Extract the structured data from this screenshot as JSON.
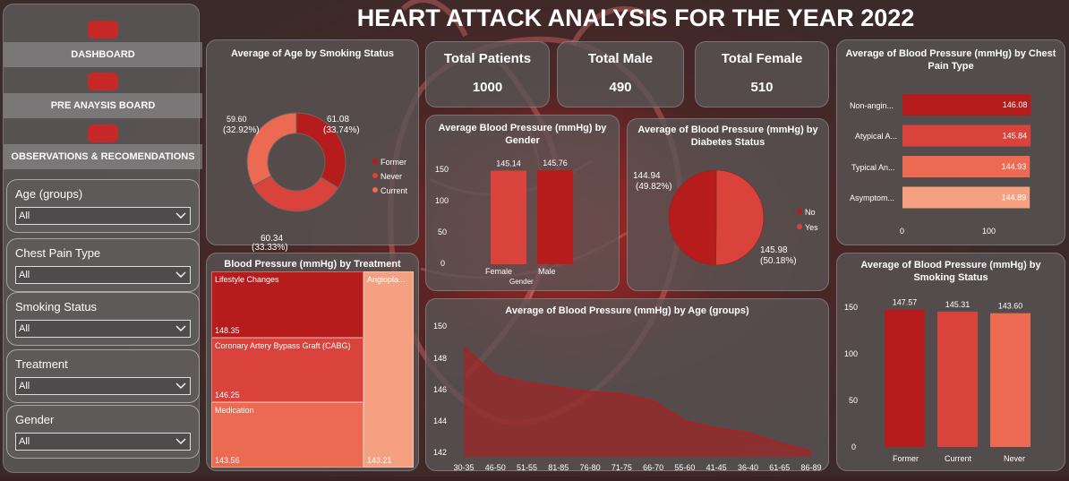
{
  "title": "HEART ATTACK ANALYSIS FOR THE YEAR 2022",
  "nav": [
    {
      "label": "DASHBOARD"
    },
    {
      "label": "PRE ANAYSIS BOARD"
    },
    {
      "label": "OBSERVATIONS & RECOMENDATIONS"
    }
  ],
  "filters": [
    {
      "label": "Age (groups)",
      "value": "All"
    },
    {
      "label": "Chest Pain Type",
      "value": "All"
    },
    {
      "label": "Smoking Status",
      "value": "All"
    },
    {
      "label": "Treatment",
      "value": "All"
    },
    {
      "label": "Gender",
      "value": "All"
    }
  ],
  "kpis": [
    {
      "label": "Total Patients",
      "value": "1000"
    },
    {
      "label": "Total Male",
      "value": "490"
    },
    {
      "label": "Total Female",
      "value": "510"
    }
  ],
  "colors": {
    "red_dark": "#b71c1c",
    "red_mid": "#d9433b",
    "red_light": "#ef8064",
    "red_pale": "#f4a081"
  },
  "chart_data": [
    {
      "id": "age_by_smoking",
      "type": "pie",
      "title": "Average of Age by Smoking Status",
      "labels": [
        "Former",
        "Never",
        "Current"
      ],
      "values": [
        61.08,
        60.34,
        59.6
      ],
      "value_labels": [
        "61.08",
        "60.34",
        "59.60"
      ],
      "pct_labels": [
        "(33.74%)",
        "(33.33%)",
        "(32.92%)"
      ],
      "legend_position": "right",
      "colors": [
        "#b71c1c",
        "#d9433b",
        "#ec6a52"
      ]
    },
    {
      "id": "bp_by_gender",
      "type": "bar",
      "title": "Average Blood Pressure (mmHg) by Gender",
      "xlabel": "Gender",
      "categories": [
        "Female",
        "Male"
      ],
      "values": [
        145.14,
        145.76
      ],
      "value_labels": [
        "145.14",
        "145.76"
      ],
      "yticks": [
        "150",
        "100",
        "50",
        "0"
      ],
      "ylim": [
        0,
        150
      ],
      "colors": [
        "#d9433b",
        "#b71c1c"
      ]
    },
    {
      "id": "bp_by_diabetes",
      "type": "pie",
      "title": "Average of Blood Pressure (mmHg) by Diabetes Status",
      "labels": [
        "No",
        "Yes"
      ],
      "values": [
        144.94,
        145.98
      ],
      "value_labels": [
        "144.94",
        "145.98"
      ],
      "pct_labels": [
        "(49.82%)",
        "(50.18%)"
      ],
      "legend_position": "right",
      "colors": [
        "#b71c1c",
        "#d9433b"
      ]
    },
    {
      "id": "bp_by_chest_pain",
      "type": "bar",
      "title": "Average of Blood Pressure (mmHg) by Chest Pain Type",
      "categories": [
        "Non-angin...",
        "Atypical A...",
        "Typical An...",
        "Asymptom..."
      ],
      "values": [
        146.08,
        145.84,
        144.93,
        144.89
      ],
      "value_labels": [
        "146.08",
        "145.84",
        "144.93",
        "144.89"
      ],
      "xticks": [
        "0",
        "100"
      ],
      "xlim": [
        0,
        160
      ],
      "orientation": "horizontal",
      "colors": [
        "#b71c1c",
        "#d9433b",
        "#ec6a52",
        "#f4a081"
      ]
    },
    {
      "id": "bp_by_treatment",
      "type": "treemap",
      "title": "Blood Pressure (mmHg) by Treatment",
      "labels": [
        "Lifestyle Changes",
        "Coronary Artery Bypass Graft (CABG)",
        "Medication",
        "Angiopla..."
      ],
      "values": [
        148.35,
        146.25,
        143.56,
        143.21
      ],
      "value_labels": [
        "148.35",
        "146.25",
        "143.56",
        "143.21"
      ],
      "colors": [
        "#b71c1c",
        "#d9433b",
        "#ec6a52",
        "#f4a081"
      ]
    },
    {
      "id": "bp_by_age",
      "type": "area",
      "title": "Average of Blood Pressure (mmHg) by Age (groups)",
      "categories": [
        "30-35",
        "46-50",
        "51-55",
        "81-85",
        "76-80",
        "71-75",
        "66-70",
        "55-60",
        "41-45",
        "36-40",
        "61-65",
        "86-89"
      ],
      "values": [
        149.0,
        147.1,
        146.6,
        146.3,
        146.0,
        145.9,
        145.4,
        144.1,
        143.6,
        143.3,
        142.6,
        142.1
      ],
      "yticks": [
        "150",
        "148",
        "146",
        "144",
        "142"
      ],
      "ylim": [
        141.7,
        150.6
      ],
      "color": "#b71c1c"
    },
    {
      "id": "bp_by_smoking",
      "type": "bar",
      "title": "Average of Blood Pressure (mmHg) by Smoking Status",
      "categories": [
        "Former",
        "Current",
        "Never"
      ],
      "values": [
        147.57,
        145.31,
        143.6
      ],
      "value_labels": [
        "147.57",
        "145.31",
        "143.60"
      ],
      "yticks": [
        "150",
        "100",
        "50",
        "0"
      ],
      "ylim": [
        0,
        150
      ],
      "colors": [
        "#b71c1c",
        "#d9433b",
        "#ec6a52"
      ]
    }
  ]
}
